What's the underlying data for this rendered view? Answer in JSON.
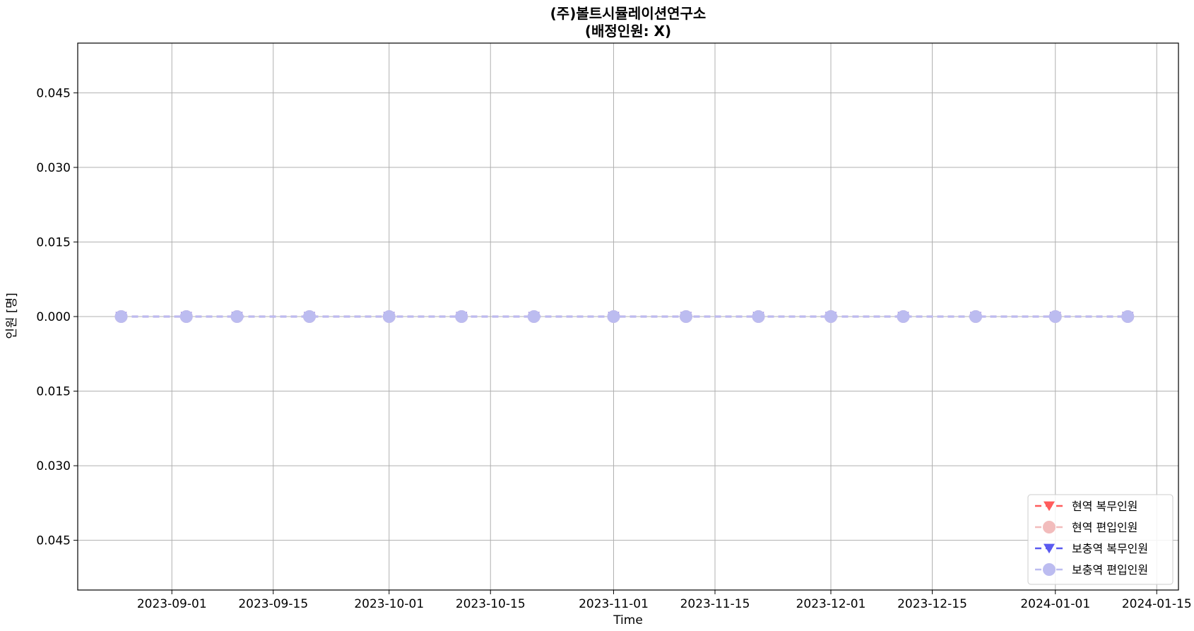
{
  "chart_data": {
    "type": "line",
    "title": "(주)볼트시뮬레이션연구소",
    "subtitle": "(배정인원:   X)",
    "xlabel": "Time",
    "ylabel": "인원 [명]",
    "x_ticks": [
      "2023-09-01",
      "2023-09-15",
      "2023-10-01",
      "2023-10-15",
      "2023-11-01",
      "2023-11-15",
      "2023-12-01",
      "2023-12-15",
      "2024-01-01",
      "2024-01-15"
    ],
    "y_ticks": [
      0.045,
      0.03,
      0.015,
      0.0,
      -0.015,
      -0.03,
      -0.045
    ],
    "y_tick_labels": [
      "0.045",
      "0.030",
      "0.015",
      "0.000",
      "0.015",
      "0.030",
      "0.045"
    ],
    "xlim": [
      "2023-08-19",
      "2024-01-18"
    ],
    "ylim": [
      -0.055,
      0.055
    ],
    "grid": true,
    "legend_position": "lower-right",
    "x": [
      "2023-08-25",
      "2023-09-03",
      "2023-09-10",
      "2023-09-20",
      "2023-10-01",
      "2023-10-11",
      "2023-10-21",
      "2023-11-01",
      "2023-11-11",
      "2023-11-21",
      "2023-12-01",
      "2023-12-11",
      "2023-12-21",
      "2024-01-01",
      "2024-01-11"
    ],
    "series": [
      {
        "name": "현역  복무인원",
        "color": "#ff5c5c",
        "marker": "triangle-down",
        "linestyle": "dashed",
        "values": [
          0,
          0,
          0,
          0,
          0,
          0,
          0,
          0,
          0,
          0,
          0,
          0,
          0,
          0,
          0
        ]
      },
      {
        "name": "현역  편입인원",
        "color": "#f2bcbc",
        "marker": "circle",
        "linestyle": "dashed",
        "values": [
          0,
          0,
          0,
          0,
          0,
          0,
          0,
          0,
          0,
          0,
          0,
          0,
          0,
          0,
          0
        ]
      },
      {
        "name": "보충역  복무인원",
        "color": "#5a5af0",
        "marker": "triangle-down",
        "linestyle": "dashed",
        "values": [
          0,
          0,
          0,
          0,
          0,
          0,
          0,
          0,
          0,
          0,
          0,
          0,
          0,
          0,
          0
        ]
      },
      {
        "name": "보충역  편입인원",
        "color": "#bcbcf0",
        "marker": "circle",
        "linestyle": "dashed",
        "values": [
          0,
          0,
          0,
          0,
          0,
          0,
          0,
          0,
          0,
          0,
          0,
          0,
          0,
          0,
          0
        ]
      }
    ]
  }
}
